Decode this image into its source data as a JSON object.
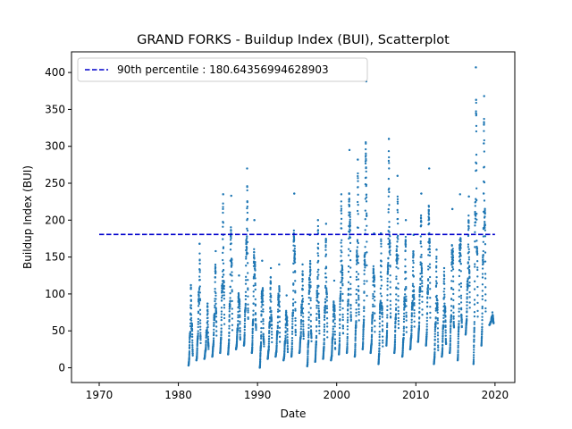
{
  "chart_data": {
    "type": "scatter",
    "title": "GRAND FORKS - Buildup Index (BUI), Scatterplot",
    "xlabel": "Date",
    "ylabel": "Buildup Index (BUI)",
    "xlim": [
      1966.5,
      2022.5
    ],
    "ylim": [
      -20,
      428
    ],
    "xticks": [
      1970,
      1980,
      1990,
      2000,
      2010,
      2020
    ],
    "yticks": [
      0,
      50,
      100,
      150,
      200,
      250,
      300,
      350,
      400
    ],
    "grid": false,
    "legend_position": "top-left",
    "series_color": "#1f77b4",
    "reference_line": {
      "label": "90th percentile : 180.64356994628903",
      "value": 180.64356994628903,
      "x_start": 1970,
      "x_end": 2020,
      "color": "#0000cc",
      "style": "dashed"
    },
    "fire_seasons": [
      {
        "year": 1981,
        "min": 3,
        "max": 112
      },
      {
        "year": 1982,
        "min": 10,
        "max": 168
      },
      {
        "year": 1983,
        "min": 12,
        "max": 87
      },
      {
        "year": 1984,
        "min": 15,
        "max": 158
      },
      {
        "year": 1985,
        "min": 20,
        "max": 235
      },
      {
        "year": 1986,
        "min": 18,
        "max": 233
      },
      {
        "year": 1987,
        "min": 25,
        "max": 125
      },
      {
        "year": 1988,
        "min": 30,
        "max": 270
      },
      {
        "year": 1989,
        "min": 20,
        "max": 200
      },
      {
        "year": 1990,
        "min": 0,
        "max": 145
      },
      {
        "year": 1991,
        "min": 12,
        "max": 135
      },
      {
        "year": 1992,
        "min": 15,
        "max": 140
      },
      {
        "year": 1993,
        "min": 10,
        "max": 98
      },
      {
        "year": 1994,
        "min": 15,
        "max": 236
      },
      {
        "year": 1995,
        "min": 20,
        "max": 140
      },
      {
        "year": 1996,
        "min": 2,
        "max": 180
      },
      {
        "year": 1997,
        "min": 8,
        "max": 200
      },
      {
        "year": 1998,
        "min": 12,
        "max": 195
      },
      {
        "year": 1999,
        "min": 10,
        "max": 118
      },
      {
        "year": 2000,
        "min": 18,
        "max": 235
      },
      {
        "year": 2001,
        "min": 20,
        "max": 295
      },
      {
        "year": 2002,
        "min": 15,
        "max": 282
      },
      {
        "year": 2003,
        "min": 25,
        "max": 388
      },
      {
        "year": 2004,
        "min": 20,
        "max": 182
      },
      {
        "year": 2005,
        "min": 5,
        "max": 182
      },
      {
        "year": 2006,
        "min": 30,
        "max": 310
      },
      {
        "year": 2007,
        "min": 20,
        "max": 260
      },
      {
        "year": 2008,
        "min": 15,
        "max": 200
      },
      {
        "year": 2009,
        "min": 25,
        "max": 180
      },
      {
        "year": 2010,
        "min": 35,
        "max": 236
      },
      {
        "year": 2011,
        "min": 30,
        "max": 270
      },
      {
        "year": 2012,
        "min": 5,
        "max": 160
      },
      {
        "year": 2013,
        "min": 15,
        "max": 135
      },
      {
        "year": 2014,
        "min": 20,
        "max": 215
      },
      {
        "year": 2015,
        "min": 10,
        "max": 235
      },
      {
        "year": 2016,
        "min": 45,
        "max": 232
      },
      {
        "year": 2017,
        "min": 5,
        "max": 407
      },
      {
        "year": 2018,
        "min": 30,
        "max": 368
      },
      {
        "year": 2019,
        "min": 58,
        "max": 75
      }
    ]
  }
}
